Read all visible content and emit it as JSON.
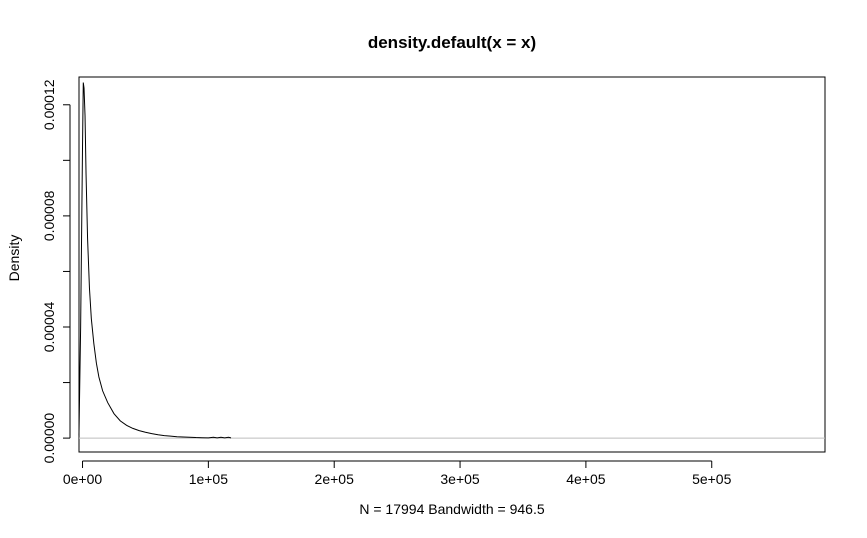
{
  "chart_data": {
    "type": "line",
    "title": "density.default(x = x)",
    "xlabel": "N = 17994   Bandwidth = 946.5",
    "ylabel": "Density",
    "xlim": [
      -2800,
      590000
    ],
    "ylim": [
      -5e-06,
      0.00013
    ],
    "x_ticks": [
      {
        "value": 0,
        "label": "0e+00"
      },
      {
        "value": 100000,
        "label": "1e+05"
      },
      {
        "value": 200000,
        "label": "2e+05"
      },
      {
        "value": 300000,
        "label": "3e+05"
      },
      {
        "value": 400000,
        "label": "4e+05"
      },
      {
        "value": 500000,
        "label": "5e+05"
      }
    ],
    "y_ticks": [
      {
        "value": 0,
        "label": "0.00000"
      },
      {
        "value": 2e-05,
        "label": ""
      },
      {
        "value": 4e-05,
        "label": "0.00004"
      },
      {
        "value": 6e-05,
        "label": ""
      },
      {
        "value": 8e-05,
        "label": "0.00008"
      },
      {
        "value": 0.0001,
        "label": ""
      },
      {
        "value": 0.00012,
        "label": "0.00012"
      }
    ],
    "series": [
      {
        "color": "#000000",
        "x": [
          -2840,
          -1500,
          0,
          600,
          1200,
          2000,
          2800,
          4000,
          5500,
          7000,
          9000,
          11000,
          13000,
          16000,
          20000,
          25000,
          30000,
          35000,
          40000,
          45000,
          50000,
          55000,
          60000,
          65000,
          70000,
          75000,
          80000,
          85000,
          90000,
          95000,
          100000,
          104000,
          107000,
          110000,
          113000,
          116000,
          118000
        ],
        "y": [
          1e-06,
          4e-05,
          0.000105,
          0.000128,
          0.000126,
          0.000116,
          9.5e-05,
          7.2e-05,
          5.4e-05,
          4.3e-05,
          3.4e-05,
          2.7e-05,
          2.2e-05,
          1.7e-05,
          1.28e-05,
          8.8e-06,
          6.2e-06,
          4.6e-06,
          3.5e-06,
          2.7e-06,
          2.1e-06,
          1.6e-06,
          1.2e-06,
          9e-07,
          7e-07,
          5e-07,
          4e-07,
          3e-07,
          2e-07,
          1.5e-07,
          1e-07,
          3e-07,
          1e-07,
          3e-07,
          1e-07,
          3e-07,
          1e-07
        ]
      }
    ],
    "zero_line_color": "#bebebe"
  }
}
